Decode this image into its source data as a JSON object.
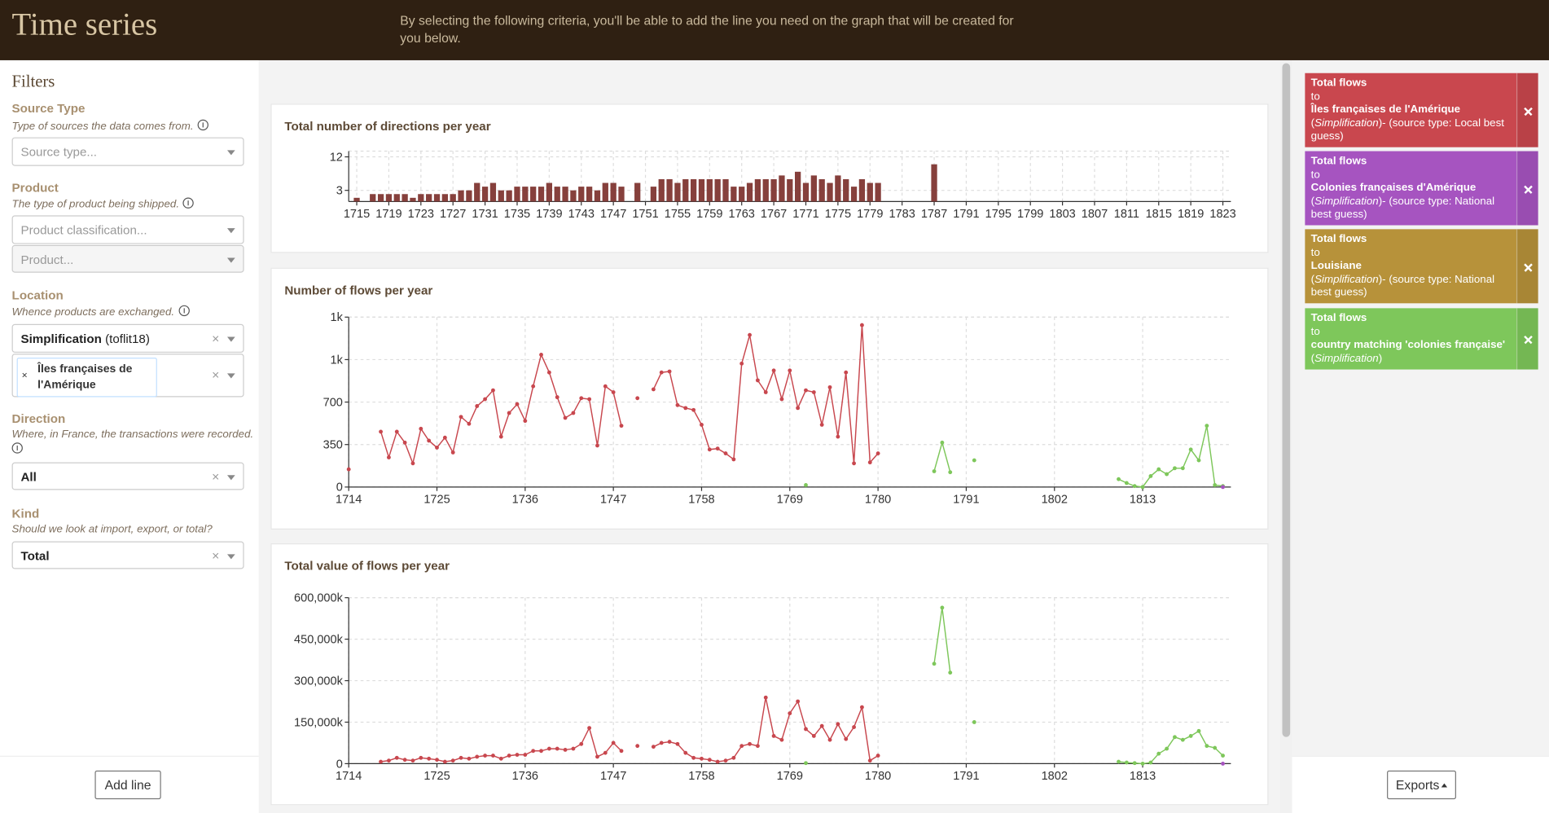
{
  "header": {
    "title": "Time series",
    "description": "By selecting the following criteria, you'll be able to add the line you need on the graph that will be created for you below."
  },
  "sidebar": {
    "title": "Filters",
    "source_type": {
      "label": "Source Type",
      "hint": "Type of sources the data comes from.",
      "placeholder": "Source type..."
    },
    "product": {
      "label": "Product",
      "hint": "The type of product being shipped.",
      "classification_placeholder": "Product classification...",
      "product_placeholder": "Product..."
    },
    "location": {
      "label": "Location",
      "hint": "Whence products are exchanged.",
      "classification": "Simplification",
      "classification_detail": "(toflit18)",
      "value": "Îles françaises de l'Amérique"
    },
    "direction": {
      "label": "Direction",
      "hint": "Where, in France, the transactions were recorded.",
      "value": "All"
    },
    "kind": {
      "label": "Kind",
      "hint": "Should we look at import, export, or total?",
      "value": "Total"
    },
    "add_line": "Add line"
  },
  "lines": [
    {
      "color": "#c9474e",
      "title": "Total flows",
      "to": "to",
      "target": "Îles françaises de l'Amérique",
      "note": [
        {
          "text": "("
        },
        {
          "text": "Simplification",
          "italic": true
        },
        {
          "text": ")- (source type: Local best guess)"
        }
      ]
    },
    {
      "color": "#a654c0",
      "title": "Total flows",
      "to": "to",
      "target": "Colonies françaises d'Amérique",
      "note": [
        {
          "text": "("
        },
        {
          "text": "Simplification",
          "italic": true
        },
        {
          "text": ")- (source type: National best guess)"
        }
      ]
    },
    {
      "color": "#b7923a",
      "title": "Total flows",
      "to": "to",
      "target": "Louisiane",
      "note": [
        {
          "text": "("
        },
        {
          "text": "Simplification",
          "italic": true
        },
        {
          "text": ")- (source type: National best guess)"
        }
      ]
    },
    {
      "color": "#7ec75b",
      "title": "Total flows",
      "to": "to",
      "target": "country matching 'colonies française'",
      "note": [
        {
          "text": "("
        },
        {
          "text": "Simplification",
          "italic": true
        },
        {
          "text": ")"
        }
      ]
    }
  ],
  "exports": "Exports",
  "chart_data": [
    {
      "type": "bar",
      "title": "Total number of directions per year",
      "color": "#86403c",
      "grid": true,
      "x": [
        1715,
        1717,
        1718,
        1719,
        1720,
        1721,
        1722,
        1723,
        1724,
        1725,
        1726,
        1727,
        1728,
        1729,
        1730,
        1731,
        1732,
        1733,
        1734,
        1735,
        1736,
        1737,
        1738,
        1739,
        1740,
        1741,
        1742,
        1743,
        1744,
        1745,
        1746,
        1747,
        1748,
        1750,
        1752,
        1753,
        1754,
        1755,
        1756,
        1757,
        1758,
        1759,
        1760,
        1761,
        1762,
        1763,
        1764,
        1765,
        1766,
        1767,
        1768,
        1769,
        1770,
        1771,
        1772,
        1773,
        1774,
        1775,
        1776,
        1777,
        1778,
        1779,
        1780,
        1787
      ],
      "values": [
        1,
        2,
        2,
        2,
        2,
        2,
        1,
        2,
        2,
        2,
        2,
        2,
        3,
        3,
        5,
        4,
        5,
        3,
        3,
        4,
        4,
        4,
        4,
        5,
        4,
        4,
        3,
        4,
        4,
        3,
        5,
        5,
        4,
        5,
        4,
        6,
        6,
        5,
        6,
        6,
        6,
        6,
        6,
        6,
        4,
        4,
        5,
        6,
        6,
        6,
        7,
        6,
        8,
        5,
        7,
        6,
        5,
        7,
        6,
        4,
        6,
        5,
        5,
        10
      ],
      "xlim": [
        1714,
        1824
      ],
      "xticks": [
        1715,
        1719,
        1723,
        1727,
        1731,
        1735,
        1739,
        1743,
        1747,
        1751,
        1755,
        1759,
        1763,
        1767,
        1771,
        1775,
        1779,
        1783,
        1787,
        1791,
        1795,
        1799,
        1803,
        1807,
        1811,
        1815,
        1819,
        1823
      ],
      "ylim": [
        0,
        13
      ],
      "yticks": [
        3,
        12
      ]
    },
    {
      "type": "line",
      "title": "Number of flows per year",
      "grid": true,
      "xlim": [
        1714,
        1824
      ],
      "xticks": [
        1714,
        1725,
        1736,
        1747,
        1758,
        1769,
        1780,
        1791,
        1802,
        1813
      ],
      "ylim": [
        0,
        1400
      ],
      "yticks": [
        0,
        350,
        700,
        {
          "value": 1050,
          "label": "1k"
        },
        {
          "value": 1400,
          "label": "1k"
        }
      ],
      "series": [
        {
          "color": "#c8474e",
          "x": [
            1714,
            1715,
            1718,
            1719,
            1720,
            1721,
            1722,
            1723,
            1724,
            1725,
            1726,
            1727,
            1728,
            1729,
            1730,
            1731,
            1732,
            1733,
            1734,
            1735,
            1736,
            1737,
            1738,
            1739,
            1740,
            1741,
            1742,
            1743,
            1744,
            1745,
            1746,
            1747,
            1748,
            1749,
            1750,
            1751,
            1752,
            1753,
            1754,
            1755,
            1756,
            1757,
            1758,
            1759,
            1760,
            1761,
            1762,
            1763,
            1764,
            1765,
            1766,
            1767,
            1768,
            1769,
            1770,
            1771,
            1772,
            1773,
            1774,
            1775,
            1776,
            1777,
            1778,
            1779,
            1780
          ],
          "values": [
            146,
            null,
            456,
            244,
            456,
            366,
            195,
            480,
            382,
            325,
            407,
            285,
            578,
            521,
            667,
            724,
            797,
            415,
            610,
            683,
            545,
            830,
            1090,
            944,
            740,
            570,
            610,
            732,
            724,
            342,
            830,
            781,
            505,
            null,
            732,
            null,
            805,
            944,
            952,
            675,
            651,
            635,
            513,
            309,
            317,
            277,
            228,
            1017,
            1253,
            879,
            781,
            960,
            724,
            960,
            651,
            797,
            781,
            513,
            822,
            415,
            944,
            195,
            1334,
            203,
            277
          ]
        },
        {
          "color": "#7ec75b",
          "x": [
            1771,
            1772,
            1787,
            1788,
            1789,
            1790,
            1792,
            1793,
            1810,
            1811,
            1812,
            1813,
            1814,
            1815,
            1816,
            1817,
            1818,
            1819,
            1820,
            1821,
            1822,
            1823
          ],
          "values": [
            16,
            null,
            130,
            366,
            122,
            null,
            220,
            null,
            65,
            33,
            8,
            0,
            90,
            146,
            106,
            155,
            155,
            309,
            220,
            505,
            16,
            8
          ]
        },
        {
          "color": "#a654c0",
          "x": [
            1823
          ],
          "values": [
            0
          ]
        }
      ]
    },
    {
      "type": "line",
      "title": "Total value of flows per year",
      "grid": true,
      "xlim": [
        1714,
        1824
      ],
      "xticks": [
        1714,
        1725,
        1736,
        1747,
        1758,
        1769,
        1780,
        1791,
        1802,
        1813
      ],
      "ylim": [
        0,
        600000000
      ],
      "yticks": [
        0,
        {
          "value": 150000000,
          "label": "150,000k"
        },
        {
          "value": 300000000,
          "label": "300,000k"
        },
        {
          "value": 450000000,
          "label": "450,000k"
        },
        {
          "value": 600000000,
          "label": "600,000k"
        }
      ],
      "series": [
        {
          "color": "#c8474e",
          "x": [
            1718,
            1719,
            1720,
            1721,
            1722,
            1723,
            1724,
            1725,
            1726,
            1727,
            1728,
            1729,
            1730,
            1731,
            1732,
            1733,
            1734,
            1735,
            1736,
            1737,
            1738,
            1739,
            1740,
            1741,
            1742,
            1743,
            1744,
            1745,
            1746,
            1747,
            1748,
            1749,
            1750,
            1751,
            1752,
            1753,
            1754,
            1755,
            1756,
            1757,
            1758,
            1759,
            1760,
            1761,
            1762,
            1763,
            1764,
            1765,
            1766,
            1767,
            1768,
            1769,
            1770,
            1771,
            1772,
            1773,
            1774,
            1775,
            1776,
            1777,
            1778,
            1779,
            1780
          ],
          "values": [
            7000000,
            11000000,
            21000000,
            14000000,
            11000000,
            21000000,
            18000000,
            14000000,
            7000000,
            11000000,
            21000000,
            18000000,
            25000000,
            29000000,
            29000000,
            18000000,
            29000000,
            32000000,
            32000000,
            46000000,
            46000000,
            54000000,
            54000000,
            50000000,
            54000000,
            71000000,
            129000000,
            25000000,
            39000000,
            75000000,
            46000000,
            null,
            64000000,
            null,
            61000000,
            75000000,
            79000000,
            71000000,
            39000000,
            21000000,
            18000000,
            14000000,
            7000000,
            11000000,
            21000000,
            64000000,
            71000000,
            64000000,
            239000000,
            100000000,
            86000000,
            182000000,
            225000000,
            125000000,
            100000000,
            136000000,
            86000000,
            143000000,
            89000000,
            132000000,
            204000000,
            11000000,
            29000000
          ]
        },
        {
          "color": "#7ec75b",
          "x": [
            1771,
            1772,
            1787,
            1788,
            1789,
            1790,
            1792,
            1793,
            1810,
            1811,
            1812,
            1813,
            1814,
            1815,
            1816,
            1817,
            1818,
            1819,
            1820,
            1821,
            1822,
            1823
          ],
          "values": [
            2000000,
            null,
            361000000,
            564000000,
            329000000,
            null,
            150000000,
            null,
            7000000,
            4000000,
            2000000,
            0,
            4000000,
            36000000,
            54000000,
            96000000,
            86000000,
            100000000,
            118000000,
            64000000,
            57000000,
            29000000
          ]
        },
        {
          "color": "#a654c0",
          "x": [
            1823
          ],
          "values": [
            0
          ]
        }
      ]
    }
  ]
}
